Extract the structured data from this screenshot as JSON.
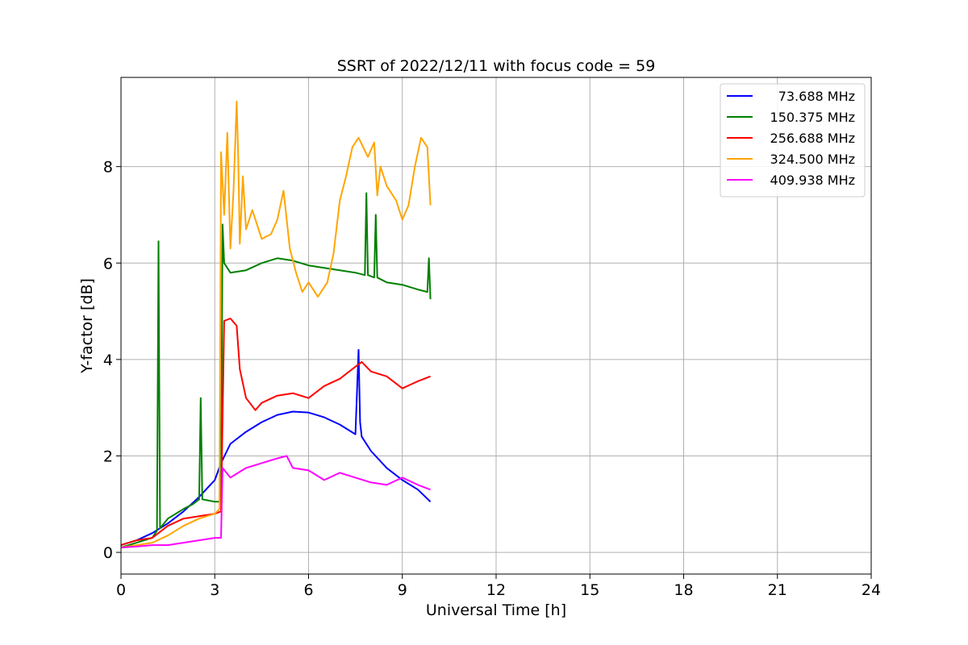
{
  "chart_data": {
    "type": "line",
    "title": "SSRT of 2022/12/11 with focus code = 59",
    "xlabel": "Universal Time [h]",
    "ylabel": "Y-factor [dB]",
    "xlim": [
      0,
      24
    ],
    "ylim": [
      -0.45,
      9.85
    ],
    "xticks": [
      0,
      3,
      6,
      9,
      12,
      15,
      18,
      21,
      24
    ],
    "yticks": [
      0,
      2,
      4,
      6,
      8
    ],
    "grid": true,
    "legend_position": "top-right",
    "series": [
      {
        "name": "73.688 MHz",
        "color": "#0000ff",
        "x": [
          0,
          0.5,
          1.0,
          1.5,
          2.0,
          2.5,
          3.0,
          3.2,
          3.5,
          4.0,
          4.5,
          5.0,
          5.5,
          6.0,
          6.5,
          7.0,
          7.5,
          7.6,
          7.65,
          7.7,
          8.0,
          8.5,
          9.0,
          9.5,
          9.9
        ],
        "y": [
          0.15,
          0.25,
          0.4,
          0.6,
          0.85,
          1.15,
          1.5,
          1.85,
          2.25,
          2.5,
          2.7,
          2.85,
          2.92,
          2.9,
          2.8,
          2.65,
          2.45,
          4.2,
          2.7,
          2.4,
          2.1,
          1.75,
          1.5,
          1.3,
          1.05
        ]
      },
      {
        "name": "150.375 MHz",
        "color": "#008000",
        "x": [
          0,
          0.5,
          1.0,
          1.15,
          1.2,
          1.25,
          1.5,
          2.0,
          2.3,
          2.5,
          2.55,
          2.6,
          3.0,
          3.2,
          3.25,
          3.3,
          3.5,
          4.0,
          4.5,
          5.0,
          5.5,
          6.0,
          6.5,
          7.0,
          7.5,
          7.8,
          7.85,
          7.9,
          8.1,
          8.15,
          8.2,
          8.5,
          9.0,
          9.5,
          9.8,
          9.85,
          9.9
        ],
        "y": [
          0.1,
          0.2,
          0.3,
          0.45,
          6.45,
          0.5,
          0.7,
          0.9,
          1.0,
          1.1,
          3.2,
          1.1,
          1.05,
          1.05,
          6.8,
          6.0,
          5.8,
          5.85,
          6.0,
          6.1,
          6.05,
          5.95,
          5.9,
          5.85,
          5.8,
          5.75,
          7.45,
          5.75,
          5.7,
          7.0,
          5.7,
          5.6,
          5.55,
          5.45,
          5.4,
          6.1,
          5.25
        ]
      },
      {
        "name": "256.688 MHz",
        "color": "#ff0000",
        "x": [
          0,
          0.5,
          1.0,
          1.5,
          2.0,
          2.5,
          3.0,
          3.2,
          3.3,
          3.5,
          3.7,
          3.8,
          4.0,
          4.3,
          4.5,
          5.0,
          5.5,
          6.0,
          6.5,
          7.0,
          7.5,
          7.7,
          8.0,
          8.5,
          9.0,
          9.5,
          9.9
        ],
        "y": [
          0.15,
          0.25,
          0.3,
          0.55,
          0.7,
          0.75,
          0.8,
          0.85,
          4.8,
          4.85,
          4.7,
          3.8,
          3.2,
          2.95,
          3.1,
          3.25,
          3.3,
          3.2,
          3.45,
          3.6,
          3.85,
          3.95,
          3.75,
          3.65,
          3.4,
          3.55,
          3.65
        ]
      },
      {
        "name": "324.500 MHz",
        "color": "#ffa500",
        "x": [
          0,
          0.5,
          1.0,
          1.5,
          2.0,
          2.5,
          3.0,
          3.15,
          3.2,
          3.3,
          3.4,
          3.5,
          3.6,
          3.7,
          3.75,
          3.8,
          3.9,
          4.0,
          4.2,
          4.5,
          4.8,
          5.0,
          5.2,
          5.4,
          5.6,
          5.8,
          6.0,
          6.3,
          6.6,
          6.8,
          7.0,
          7.2,
          7.4,
          7.6,
          7.9,
          8.1,
          8.2,
          8.3,
          8.5,
          8.8,
          9.0,
          9.2,
          9.4,
          9.6,
          9.8,
          9.9
        ],
        "y": [
          0.1,
          0.15,
          0.2,
          0.35,
          0.55,
          0.7,
          0.8,
          0.9,
          8.3,
          7.0,
          8.7,
          6.3,
          7.5,
          9.35,
          8.2,
          6.4,
          7.8,
          6.7,
          7.1,
          6.5,
          6.6,
          6.9,
          7.5,
          6.3,
          5.8,
          5.4,
          5.6,
          5.3,
          5.6,
          6.2,
          7.3,
          7.8,
          8.4,
          8.6,
          8.2,
          8.5,
          7.4,
          8.0,
          7.6,
          7.3,
          6.9,
          7.2,
          8.0,
          8.6,
          8.4,
          7.2
        ]
      },
      {
        "name": "409.938 MHz",
        "color": "#ff00ff",
        "x": [
          0,
          0.5,
          1.0,
          1.5,
          2.0,
          2.5,
          3.0,
          3.2,
          3.25,
          3.5,
          4.0,
          4.5,
          5.0,
          5.3,
          5.5,
          6.0,
          6.5,
          7.0,
          7.5,
          8.0,
          8.5,
          9.0,
          9.5,
          9.9
        ],
        "y": [
          0.1,
          0.12,
          0.15,
          0.15,
          0.2,
          0.25,
          0.3,
          0.3,
          1.75,
          1.55,
          1.75,
          1.85,
          1.95,
          2.0,
          1.75,
          1.7,
          1.5,
          1.65,
          1.55,
          1.45,
          1.4,
          1.55,
          1.4,
          1.3
        ]
      }
    ]
  }
}
